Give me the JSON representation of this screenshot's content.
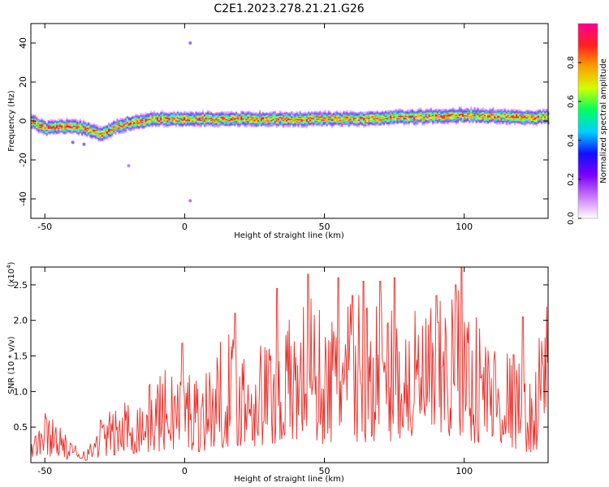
{
  "title": "C2E1.2023.278.21.21.G26",
  "chart_data": [
    {
      "type": "heatmap",
      "xlabel": "Height of straight line (km)",
      "ylabel": "Frequency (Hz)",
      "xlim": [
        -55,
        130
      ],
      "ylim": [
        -50,
        50
      ],
      "xticks": [
        -50,
        0,
        50,
        100
      ],
      "yticks": [
        -40,
        -20,
        0,
        20,
        40
      ],
      "colorbar": {
        "label": "Normalized spectral amplitude",
        "range": [
          0,
          1
        ],
        "ticks": [
          0.0,
          0.2,
          0.4,
          0.6,
          0.8
        ],
        "colormap": [
          "#ffffff",
          "#c878ff",
          "#7a00ff",
          "#1010ff",
          "#00d0ff",
          "#00ff60",
          "#d0ff00",
          "#ffa000",
          "#ff2020",
          "#ff0090"
        ]
      },
      "band_center_hz": [
        [
          -55,
          0
        ],
        [
          -50,
          -4
        ],
        [
          -45,
          -3
        ],
        [
          -40,
          -3
        ],
        [
          -35,
          -4
        ],
        [
          -30,
          -7
        ],
        [
          -25,
          -3
        ],
        [
          -20,
          -1
        ],
        [
          -10,
          1
        ],
        [
          0,
          1
        ],
        [
          20,
          1
        ],
        [
          40,
          1
        ],
        [
          60,
          1
        ],
        [
          80,
          2
        ],
        [
          100,
          3
        ],
        [
          120,
          2
        ],
        [
          130,
          2
        ]
      ],
      "band_halfwidth_hz": 3
    },
    {
      "type": "line",
      "xlabel": "Height of straight line (km)",
      "ylabel": "SNR (10 * v/v)",
      "scale_label": "(x10",
      "scale_exp": "4",
      "scale_close": ")",
      "xlim": [
        -55,
        130
      ],
      "ylim": [
        0.0,
        2.75
      ],
      "xticks": [
        -50,
        0,
        50,
        100
      ],
      "yticks": [
        0.5,
        1.0,
        1.5,
        2.0,
        2.5
      ],
      "ytick_labels": [
        "0.5",
        "1.0",
        "1.5",
        "2.0",
        "2.5"
      ],
      "color": "#e8302a",
      "envelope": [
        [
          -55,
          0.3
        ],
        [
          -50,
          0.6
        ],
        [
          -45,
          0.55
        ],
        [
          -42,
          0.25
        ],
        [
          -38,
          0.2
        ],
        [
          -34,
          0.2
        ],
        [
          -30,
          0.55
        ],
        [
          -25,
          0.6
        ],
        [
          -20,
          0.75
        ],
        [
          -15,
          0.8
        ],
        [
          -10,
          1.0
        ],
        [
          -5,
          1.1
        ],
        [
          0,
          1.15
        ],
        [
          5,
          1.0
        ],
        [
          10,
          1.2
        ],
        [
          15,
          1.5
        ],
        [
          20,
          1.4
        ],
        [
          30,
          1.45
        ],
        [
          40,
          1.7
        ],
        [
          45,
          2.0
        ],
        [
          50,
          1.6
        ],
        [
          60,
          1.9
        ],
        [
          70,
          1.9
        ],
        [
          80,
          1.7
        ],
        [
          90,
          1.8
        ],
        [
          95,
          2.0
        ],
        [
          100,
          1.9
        ],
        [
          110,
          1.5
        ],
        [
          120,
          1.2
        ],
        [
          125,
          0.8
        ],
        [
          128,
          2.1
        ],
        [
          130,
          2.3
        ]
      ],
      "peaks": [
        [
          -1,
          1.68
        ],
        [
          18,
          2.1
        ],
        [
          33,
          2.45
        ],
        [
          44,
          2.65
        ],
        [
          55,
          2.6
        ],
        [
          60,
          2.35
        ],
        [
          64,
          2.55
        ],
        [
          70,
          2.55
        ],
        [
          75,
          2.6
        ],
        [
          90,
          2.35
        ],
        [
          97,
          2.5
        ],
        [
          99,
          2.75
        ],
        [
          121,
          2.05
        ]
      ]
    }
  ]
}
